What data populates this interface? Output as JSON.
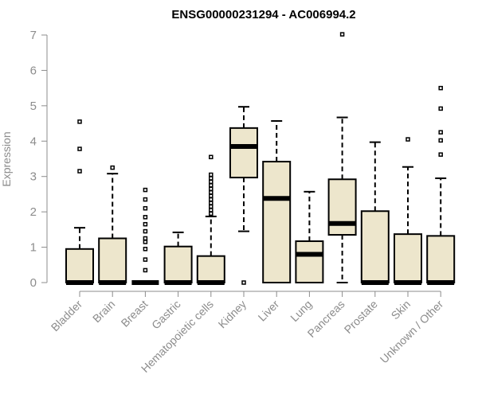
{
  "chart_data": {
    "type": "boxplot",
    "title": "ENSG00000231294 - AC006994.2",
    "ylabel": "Expression",
    "xlabel": "",
    "ylim": [
      0,
      7
    ],
    "yticks": [
      0,
      1,
      2,
      3,
      4,
      5,
      6,
      7
    ],
    "colors": {
      "box_fill": "#ede6cc",
      "stroke": "#000000",
      "axis_text": "#8c8c8c"
    },
    "categories": [
      "Bladder",
      "Brain",
      "Breast",
      "Gastric",
      "Hematopoietic cells",
      "Kidney",
      "Liver",
      "Lung",
      "Pancreas",
      "Prostate",
      "Skin",
      "Unknown / Other"
    ],
    "boxes": [
      {
        "category": "Bladder",
        "whisker_low": 0,
        "q1": 0,
        "median": 0,
        "q3": 0.95,
        "whisker_high": 1.55,
        "outliers": [
          3.15,
          3.78,
          4.55
        ]
      },
      {
        "category": "Brain",
        "whisker_low": 0,
        "q1": 0,
        "median": 0,
        "q3": 1.25,
        "whisker_high": 3.08,
        "outliers": [
          3.25
        ]
      },
      {
        "category": "Breast",
        "whisker_low": 0,
        "q1": 0,
        "median": 0,
        "q3": 0,
        "whisker_high": 0,
        "outliers": [
          0.35,
          0.65,
          0.95,
          1.15,
          1.25,
          1.45,
          1.65,
          1.85,
          2.1,
          2.35,
          2.62
        ]
      },
      {
        "category": "Gastric",
        "whisker_low": 0,
        "q1": 0,
        "median": 0,
        "q3": 1.02,
        "whisker_high": 1.42,
        "outliers": []
      },
      {
        "category": "Hematopoietic cells",
        "whisker_low": 0,
        "q1": 0,
        "median": 0,
        "q3": 0.75,
        "whisker_high": 1.87,
        "outliers": [
          1.95,
          2.05,
          2.15,
          2.25,
          2.35,
          2.45,
          2.55,
          2.65,
          2.75,
          2.85,
          2.95,
          3.05,
          3.55
        ]
      },
      {
        "category": "Kidney",
        "whisker_low": 1.45,
        "q1": 2.97,
        "median": 3.85,
        "q3": 4.37,
        "whisker_high": 4.97,
        "outliers": [
          0
        ]
      },
      {
        "category": "Liver",
        "whisker_low": 0,
        "q1": 0,
        "median": 2.38,
        "q3": 3.42,
        "whisker_high": 4.57,
        "outliers": []
      },
      {
        "category": "Lung",
        "whisker_low": 0,
        "q1": 0,
        "median": 0.8,
        "q3": 1.17,
        "whisker_high": 2.57,
        "outliers": []
      },
      {
        "category": "Pancreas",
        "whisker_low": 0,
        "q1": 1.35,
        "median": 1.67,
        "q3": 2.92,
        "whisker_high": 4.67,
        "outliers": [
          7.02
        ]
      },
      {
        "category": "Prostate",
        "whisker_low": 0,
        "q1": 0,
        "median": 0,
        "q3": 2.02,
        "whisker_high": 3.97,
        "outliers": []
      },
      {
        "category": "Skin",
        "whisker_low": 0,
        "q1": 0,
        "median": 0,
        "q3": 1.37,
        "whisker_high": 3.27,
        "outliers": [
          4.05
        ]
      },
      {
        "category": "Unknown / Other",
        "whisker_low": 0,
        "q1": 0,
        "median": 0,
        "q3": 1.32,
        "whisker_high": 2.95,
        "outliers": [
          3.62,
          4.02,
          4.25,
          4.92,
          5.5
        ]
      }
    ]
  }
}
